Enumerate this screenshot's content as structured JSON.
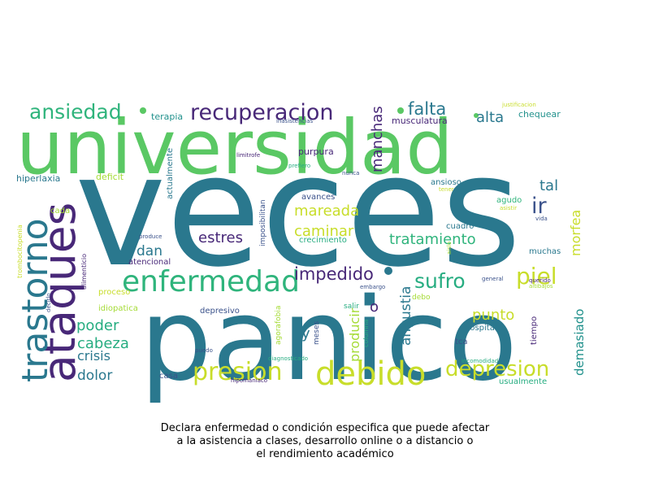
{
  "chart_data": {
    "type": "wordcloud",
    "title": "Declara enfermedad o condición especifica que puede afectar\na la asistencia a clases, desarrollo online o a distancio o\nel rendimiento académico",
    "colors": {
      "green": "#5ac864",
      "teal": "#2a788e",
      "purple": "#482878",
      "lime": "#c8dd2a",
      "mint": "#2fb47c",
      "blue": "#3b528b",
      "cyan": "#21918c",
      "aqua": "#27ad81",
      "yellowgreen": "#a5db36"
    },
    "words": [
      {
        "text": "veces",
        "weight": 100,
        "color": "teal"
      },
      {
        "text": "panico",
        "weight": 80,
        "color": "teal"
      },
      {
        "text": "universidad",
        "weight": 70,
        "color": "green"
      },
      {
        "text": "ataques",
        "weight": 40,
        "color": "purple"
      },
      {
        "text": "trastorno",
        "weight": 38,
        "color": "teal"
      },
      {
        "text": "enfermedad",
        "weight": 36,
        "color": "mint"
      },
      {
        "text": "debido",
        "weight": 34,
        "color": "lime"
      },
      {
        "text": "presion",
        "weight": 26,
        "color": "lime"
      },
      {
        "text": "depresion",
        "weight": 24,
        "color": "lime"
      },
      {
        "text": "recuperacion",
        "weight": 22,
        "color": "purple"
      },
      {
        "text": "ansiedad",
        "weight": 22,
        "color": "mint"
      },
      {
        "text": "piel",
        "weight": 20,
        "color": "lime"
      },
      {
        "text": "sufro",
        "weight": 20,
        "color": "aqua"
      },
      {
        "text": "ir",
        "weight": 18,
        "color": "blue"
      },
      {
        "text": "impedido",
        "weight": 18,
        "color": "purple"
      },
      {
        "text": "falta",
        "weight": 17,
        "color": "teal"
      },
      {
        "text": "tratamiento",
        "weight": 16,
        "color": "mint"
      },
      {
        "text": "manchas",
        "weight": 15,
        "color": "purple"
      },
      {
        "text": "alta",
        "weight": 15,
        "color": "teal"
      },
      {
        "text": "mareada",
        "weight": 14,
        "color": "lime"
      },
      {
        "text": "caminar",
        "weight": 14,
        "color": "lime"
      },
      {
        "text": "estres",
        "weight": 14,
        "color": "purple"
      },
      {
        "text": "tal",
        "weight": 14,
        "color": "teal"
      },
      {
        "text": "morfea",
        "weight": 13,
        "color": "lime"
      },
      {
        "text": "punto",
        "weight": 14,
        "color": "lime"
      },
      {
        "text": "poder",
        "weight": 14,
        "color": "aqua"
      },
      {
        "text": "angustia",
        "weight": 14,
        "color": "teal"
      },
      {
        "text": "cabeza",
        "weight": 14,
        "color": "aqua"
      },
      {
        "text": "dan",
        "weight": 13,
        "color": "teal"
      },
      {
        "text": "crisis",
        "weight": 13,
        "color": "teal"
      },
      {
        "text": "dolor",
        "weight": 13,
        "color": "teal"
      },
      {
        "text": "demasiado",
        "weight": 13,
        "color": "cyan"
      },
      {
        "text": "producir",
        "weight": 13,
        "color": "yellowgreen"
      },
      {
        "text": "o",
        "weight": 13,
        "color": "purple"
      },
      {
        "text": "y",
        "weight": 13,
        "color": "teal"
      },
      {
        "text": "musculatura",
        "weight": 9,
        "color": "purple"
      },
      {
        "text": "terapia",
        "weight": 9,
        "color": "cyan"
      },
      {
        "text": "chequear",
        "weight": 9,
        "color": "cyan"
      },
      {
        "text": "purpura",
        "weight": 9,
        "color": "purple"
      },
      {
        "text": "hiperlaxia",
        "weight": 9,
        "color": "teal"
      },
      {
        "text": "deficit",
        "weight": 9,
        "color": "yellowgreen"
      },
      {
        "text": "actualmente",
        "weight": 8,
        "color": "teal"
      },
      {
        "text": "imposibilitan",
        "weight": 8,
        "color": "blue"
      },
      {
        "text": "ansioso",
        "weight": 8,
        "color": "teal"
      },
      {
        "text": "avances",
        "weight": 8,
        "color": "blue"
      },
      {
        "text": "agudo",
        "weight": 8,
        "color": "mint"
      },
      {
        "text": "cuadro",
        "weight": 8,
        "color": "teal"
      },
      {
        "text": "crecimiento",
        "weight": 8,
        "color": "aqua"
      },
      {
        "text": "cada",
        "weight": 8,
        "color": "yellowgreen"
      },
      {
        "text": "muchas",
        "weight": 8,
        "color": "teal"
      },
      {
        "text": "atencional",
        "weight": 8,
        "color": "purple"
      },
      {
        "text": "proceso",
        "weight": 8,
        "color": "lime"
      },
      {
        "text": "idiopatica",
        "weight": 8,
        "color": "yellowgreen"
      },
      {
        "text": "depresivo",
        "weight": 8,
        "color": "blue"
      },
      {
        "text": "hospital",
        "weight": 8,
        "color": "teal"
      },
      {
        "text": "tca",
        "weight": 8,
        "color": "blue"
      },
      {
        "text": "tiempo",
        "weight": 8,
        "color": "purple"
      },
      {
        "text": "usualmente",
        "weight": 8,
        "color": "aqua"
      },
      {
        "text": "casa",
        "weight": 8,
        "color": "blue"
      },
      {
        "text": "debo",
        "weight": 7,
        "color": "yellowgreen"
      },
      {
        "text": "salir",
        "weight": 7,
        "color": "aqua"
      },
      {
        "text": "agorafobia",
        "weight": 7,
        "color": "yellowgreen"
      },
      {
        "text": "meses",
        "weight": 7,
        "color": "blue"
      },
      {
        "text": "columna",
        "weight": 7,
        "color": "aqua"
      },
      {
        "text": "alimenticio",
        "weight": 7,
        "color": "purple"
      },
      {
        "text": "trombocitopenia",
        "weight": 7,
        "color": "lime"
      },
      {
        "text": "justificacion",
        "weight": 6,
        "color": "lime"
      },
      {
        "text": "inasistencias",
        "weight": 6,
        "color": "blue"
      },
      {
        "text": "limitrofe",
        "weight": 6,
        "color": "purple"
      },
      {
        "text": "prefiero",
        "weight": 6,
        "color": "aqua"
      },
      {
        "text": "nunca",
        "weight": 6,
        "color": "blue"
      },
      {
        "text": "tener",
        "weight": 6,
        "color": "lime"
      },
      {
        "text": "asistir",
        "weight": 6,
        "color": "lime"
      },
      {
        "text": "vida",
        "weight": 6,
        "color": "blue"
      },
      {
        "text": "produce",
        "weight": 6,
        "color": "blue"
      },
      {
        "text": "aislo",
        "weight": 6,
        "color": "yellowgreen"
      },
      {
        "text": "general",
        "weight": 6,
        "color": "blue"
      },
      {
        "text": "querido",
        "weight": 6,
        "color": "purple"
      },
      {
        "text": "altibajos",
        "weight": 6,
        "color": "yellowgreen"
      },
      {
        "text": "embargo",
        "weight": 6,
        "color": "blue"
      },
      {
        "text": "decirlo",
        "weight": 6,
        "color": "blue"
      },
      {
        "text": "puedo",
        "weight": 6,
        "color": "blue"
      },
      {
        "text": "diagnosticado",
        "weight": 6,
        "color": "aqua"
      },
      {
        "text": "incomodidad",
        "weight": 6,
        "color": "aqua"
      },
      {
        "text": "hipomaniaco",
        "weight": 6,
        "color": "purple"
      }
    ]
  }
}
